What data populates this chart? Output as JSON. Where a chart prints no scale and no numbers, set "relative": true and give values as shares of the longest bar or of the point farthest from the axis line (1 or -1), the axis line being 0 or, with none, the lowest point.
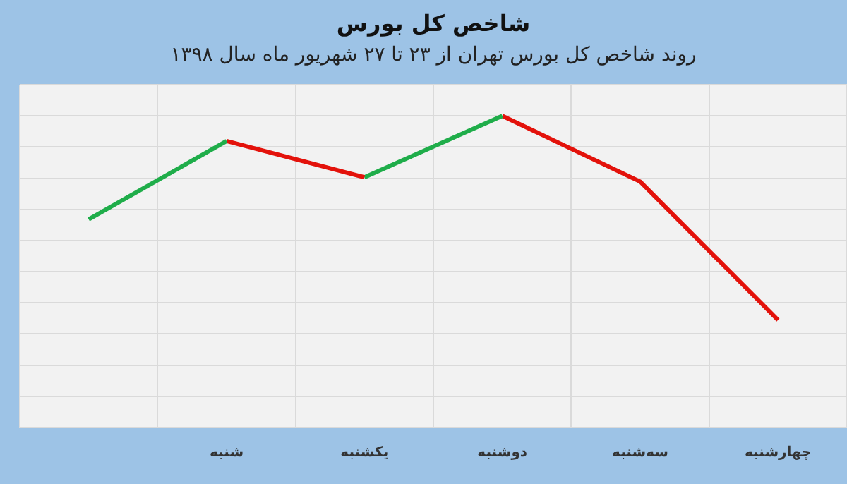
{
  "chart_data": {
    "type": "line",
    "title": "شاخص کل بورس",
    "subtitle": "روند شاخص کل بورس تهران از ۲۳ تا ۲۷ شهریور ماه سال ۱۳۹۸",
    "categories": [
      null,
      "شنبه",
      "یکشنبه",
      "دوشنبه",
      "سه‌شنبه",
      "چهارشنبه"
    ],
    "relative": true,
    "grid": true,
    "marker": "none",
    "series": [
      {
        "color": "#1fad4a",
        "values": [
          0.668,
          0.919,
          null,
          null,
          null,
          null
        ]
      },
      {
        "color": "#e3120b",
        "values": [
          null,
          0.919,
          0.803,
          null,
          null,
          null
        ]
      },
      {
        "color": "#1fad4a",
        "values": [
          null,
          null,
          0.803,
          1,
          null,
          null
        ]
      },
      {
        "color": "#e3120b",
        "values": [
          null,
          null,
          null,
          1,
          0.789,
          0.345
        ]
      }
    ]
  }
}
